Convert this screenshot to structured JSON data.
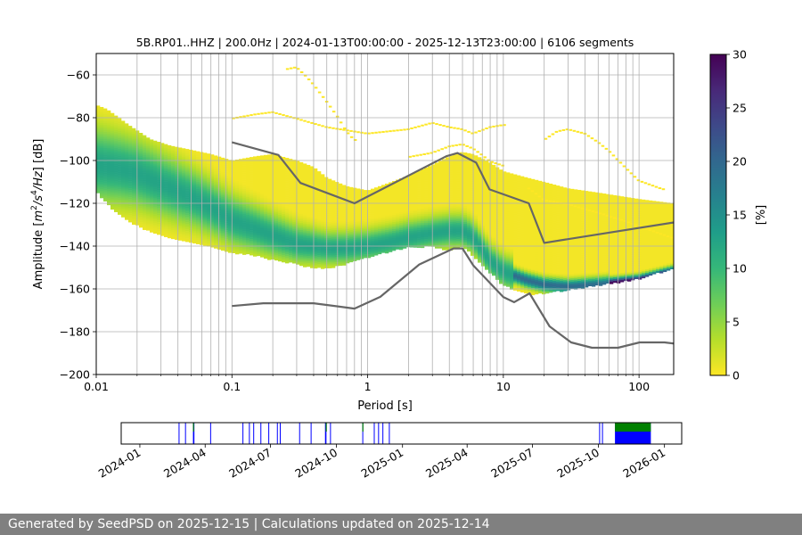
{
  "chart_data": [
    {
      "type": "heatmap",
      "title": "5B.RP01..HHZ | 200.0Hz | 2024-01-13T00:00:00 - 2025-12-13T23:00:00 | 6106 segments",
      "xlabel": "Period [s]",
      "ylabel_parts": [
        "Amplitude [",
        "m",
        "2",
        "/",
        "s",
        "4",
        "/",
        "Hz",
        "] [dB]"
      ],
      "x_scale": "log",
      "xlim": [
        0.01,
        180
      ],
      "ylim": [
        -200,
        -50
      ],
      "x_ticks": [
        {
          "value": 0.01,
          "label": "0.01"
        },
        {
          "value": 0.1,
          "label": "0.1"
        },
        {
          "value": 1,
          "label": "1"
        },
        {
          "value": 10,
          "label": "10"
        },
        {
          "value": 100,
          "label": "100"
        }
      ],
      "y_ticks": [
        {
          "value": -60,
          "label": "−60"
        },
        {
          "value": -80,
          "label": "−80"
        },
        {
          "value": -100,
          "label": "−100"
        },
        {
          "value": -120,
          "label": "−120"
        },
        {
          "value": -140,
          "label": "−140"
        },
        {
          "value": -160,
          "label": "−160"
        },
        {
          "value": -180,
          "label": "−180"
        },
        {
          "value": -200,
          "label": "−200"
        }
      ],
      "colorbar": {
        "label": "[%]",
        "min": 0,
        "max": 30,
        "ticks": [
          "0",
          "5",
          "10",
          "15",
          "20",
          "25",
          "30"
        ],
        "colors": [
          "#fde725",
          "#b5de2b",
          "#6ece58",
          "#35b779",
          "#1f9e89",
          "#26828e",
          "#31688e",
          "#3e4989",
          "#482878",
          "#440154"
        ]
      },
      "grid": true,
      "density_outer": {
        "periods": [
          0.01,
          0.012,
          0.017,
          0.025,
          0.035,
          0.05,
          0.07,
          0.1,
          0.15,
          0.2,
          0.3,
          0.4,
          0.5,
          0.7,
          1.0,
          1.5,
          2,
          3,
          4,
          5,
          6,
          8,
          10,
          15,
          20,
          30,
          50,
          100,
          180
        ],
        "upper": [
          -74,
          -76,
          -83,
          -90,
          -93,
          -95,
          -97,
          -100,
          -98,
          -97,
          -100,
          -103,
          -108,
          -112,
          -114,
          -110,
          -107,
          -102,
          -98,
          -96,
          -97,
          -101,
          -105,
          -108,
          -110,
          -113,
          -115,
          -118,
          -120
        ],
        "lower": [
          -114,
          -120,
          -128,
          -133,
          -136,
          -138,
          -140,
          -143,
          -144,
          -146,
          -148,
          -150,
          -150,
          -148,
          -145,
          -142,
          -140,
          -140,
          -142,
          -140,
          -144,
          -152,
          -158,
          -162,
          -162,
          -160,
          -158,
          -155,
          -150
        ]
      },
      "density_mode": {
        "periods": [
          0.01,
          0.015,
          0.02,
          0.03,
          0.05,
          0.07,
          0.1,
          0.15,
          0.2,
          0.3,
          0.5,
          0.7,
          1.0,
          1.5,
          2,
          3,
          4,
          5,
          6,
          7,
          8,
          10,
          15,
          20,
          30,
          50,
          100,
          180
        ],
        "values": [
          -102,
          -104,
          -106,
          -111,
          -117,
          -122,
          -128,
          -132,
          -135,
          -139,
          -141,
          -141,
          -140,
          -138,
          -136,
          -134,
          -133,
          -133,
          -136,
          -142,
          -147,
          -152,
          -156,
          -158,
          -159,
          -158,
          -156,
          -152
        ]
      },
      "density_scatter": [
        {
          "periods": [
            0.25,
            0.3,
            0.35,
            0.4,
            0.5,
            0.6,
            0.7,
            0.8
          ],
          "values": [
            -57,
            -56,
            -60,
            -64,
            -72,
            -79,
            -86,
            -90
          ]
        },
        {
          "periods": [
            0.1,
            0.15,
            0.2,
            0.3,
            0.5,
            1,
            2,
            3,
            4,
            5,
            6,
            8,
            10
          ],
          "values": [
            -80,
            -78,
            -77,
            -80,
            -84,
            -87,
            -85,
            -82,
            -84,
            -85,
            -87,
            -84,
            -83
          ]
        },
        {
          "periods": [
            2,
            3,
            4,
            5,
            6,
            7,
            8,
            10
          ],
          "values": [
            -98,
            -96,
            -93,
            -92,
            -94,
            -97,
            -100,
            -102
          ]
        },
        {
          "periods": [
            20,
            25,
            30,
            40,
            50,
            60,
            80,
            100,
            150
          ],
          "values": [
            -90,
            -86,
            -85,
            -87,
            -91,
            -95,
            -103,
            -109,
            -113
          ]
        },
        {
          "periods": [
            15,
            20,
            30,
            50,
            80,
            120,
            180
          ],
          "values": [
            -112,
            -118,
            -120,
            -124,
            -128,
            -132,
            -136
          ]
        }
      ],
      "high_noise_model": {
        "periods": [
          0.1,
          0.22,
          0.32,
          0.8,
          3.8,
          4.6,
          6.3,
          7.9,
          15.4,
          20,
          354.8
        ],
        "values": [
          -91.5,
          -97.4,
          -110.5,
          -120,
          -98,
          -96.5,
          -101,
          -113.5,
          -120,
          -138.5,
          -126
        ]
      },
      "low_noise_model": {
        "periods": [
          0.1,
          0.17,
          0.4,
          0.8,
          1.24,
          2.4,
          4.3,
          5,
          6,
          10,
          12,
          15.6,
          21.9,
          31.6,
          45,
          70,
          101,
          154,
          328
        ],
        "values": [
          -168,
          -166.7,
          -166.7,
          -169.2,
          -163.7,
          -148.6,
          -141.1,
          -141.1,
          -149,
          -163.8,
          -166.2,
          -162.1,
          -177.5,
          -185,
          -187.5,
          -187.5,
          -185,
          -185,
          -187.5
        ]
      }
    },
    {
      "type": "timeline",
      "xlim": [
        "2023-12-06",
        "2026-01-25"
      ],
      "x_ticks": [
        {
          "date": "2024-01-01",
          "label": "2024-01"
        },
        {
          "date": "2024-04-01",
          "label": "2024-04"
        },
        {
          "date": "2024-07-01",
          "label": "2024-07"
        },
        {
          "date": "2024-10-01",
          "label": "2024-10"
        },
        {
          "date": "2025-01-01",
          "label": "2025-01"
        },
        {
          "date": "2025-04-01",
          "label": "2025-04"
        },
        {
          "date": "2025-07-01",
          "label": "2025-07"
        },
        {
          "date": "2025-10-01",
          "label": "2025-10"
        },
        {
          "date": "2026-01-01",
          "label": "2026-01"
        }
      ],
      "colors": {
        "used": "#0000ff",
        "available": "#008000"
      },
      "used_ranges": [
        [
          "2024-02-24",
          "2024-02-24"
        ],
        [
          "2024-03-04",
          "2024-03-04"
        ],
        [
          "2024-03-15",
          "2024-03-17"
        ],
        [
          "2024-04-08",
          "2024-04-08"
        ],
        [
          "2024-05-23",
          "2024-05-23"
        ],
        [
          "2024-06-01",
          "2024-06-02"
        ],
        [
          "2024-06-07",
          "2024-06-07"
        ],
        [
          "2024-06-17",
          "2024-06-18"
        ],
        [
          "2024-06-28",
          "2024-06-28"
        ],
        [
          "2024-07-10",
          "2024-07-10"
        ],
        [
          "2024-07-14",
          "2024-07-14"
        ],
        [
          "2024-08-10",
          "2024-08-10"
        ],
        [
          "2024-08-26",
          "2024-08-27"
        ],
        [
          "2024-09-15",
          "2024-09-17"
        ],
        [
          "2024-09-22",
          "2024-09-22"
        ],
        [
          "2024-11-06",
          "2024-11-07"
        ],
        [
          "2024-11-22",
          "2024-11-22"
        ],
        [
          "2024-11-28",
          "2024-11-28"
        ],
        [
          "2024-12-04",
          "2024-12-04"
        ],
        [
          "2024-12-13",
          "2024-12-13"
        ],
        [
          "2025-10-02",
          "2025-10-02"
        ],
        [
          "2025-10-06",
          "2025-10-06"
        ],
        [
          "2025-10-24",
          "2025-12-13"
        ]
      ],
      "available_ranges": [
        [
          "2024-03-15",
          "2024-03-16"
        ],
        [
          "2024-09-16",
          "2024-09-17"
        ],
        [
          "2024-11-06",
          "2024-11-07"
        ],
        [
          "2025-10-24",
          "2025-12-13"
        ]
      ]
    }
  ],
  "footer": {
    "text": "Generated by SeedPSD on 2025-12-15 | Calculations updated on 2025-12-14"
  }
}
